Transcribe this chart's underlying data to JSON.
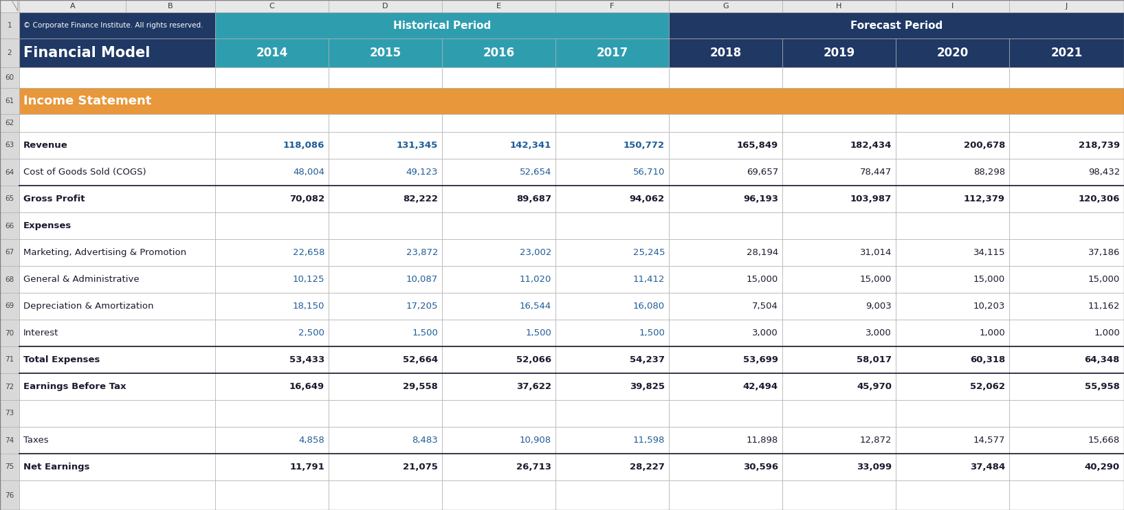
{
  "copyright": "© Corporate Finance Institute. All rights reserved.",
  "title": "Financial Model",
  "section_title": "Income Statement",
  "period_headers": {
    "historical": "Historical Period",
    "forecast": "Forecast Period"
  },
  "years": [
    "2014",
    "2015",
    "2016",
    "2017",
    "2018",
    "2019",
    "2020",
    "2021"
  ],
  "rows": [
    {
      "rnum": "1",
      "label": "",
      "bold": false,
      "is_header1": true,
      "values": [
        null,
        null,
        null,
        null,
        null,
        null,
        null,
        null
      ]
    },
    {
      "rnum": "2",
      "label": "",
      "bold": false,
      "is_header2": true,
      "values": [
        null,
        null,
        null,
        null,
        null,
        null,
        null,
        null
      ]
    },
    {
      "rnum": "60",
      "label": "",
      "bold": false,
      "is_blank": true,
      "values": [
        null,
        null,
        null,
        null,
        null,
        null,
        null,
        null
      ]
    },
    {
      "rnum": "61",
      "label": "Income Statement",
      "bold": true,
      "is_section": true,
      "values": [
        null,
        null,
        null,
        null,
        null,
        null,
        null,
        null
      ]
    },
    {
      "rnum": "62",
      "label": "",
      "bold": false,
      "is_blank": true,
      "values": [
        null,
        null,
        null,
        null,
        null,
        null,
        null,
        null
      ]
    },
    {
      "rnum": "63",
      "label": "Revenue",
      "bold": true,
      "hist_blue": true,
      "fore_blue": false,
      "values": [
        "118,086",
        "131,345",
        "142,341",
        "150,772",
        "165,849",
        "182,434",
        "200,678",
        "218,739"
      ]
    },
    {
      "rnum": "64",
      "label": "Cost of Goods Sold (COGS)",
      "bold": false,
      "hist_blue": true,
      "fore_blue": false,
      "values": [
        "48,004",
        "49,123",
        "52,654",
        "56,710",
        "69,657",
        "78,447",
        "88,298",
        "98,432"
      ]
    },
    {
      "rnum": "65",
      "label": "Gross Profit",
      "bold": true,
      "top_border": true,
      "hist_blue": false,
      "fore_blue": false,
      "values": [
        "70,082",
        "82,222",
        "89,687",
        "94,062",
        "96,193",
        "103,987",
        "112,379",
        "120,306"
      ]
    },
    {
      "rnum": "66",
      "label": "Expenses",
      "bold": true,
      "hist_blue": false,
      "fore_blue": false,
      "values": [
        null,
        null,
        null,
        null,
        null,
        null,
        null,
        null
      ]
    },
    {
      "rnum": "67",
      "label": "Marketing, Advertising & Promotion",
      "bold": false,
      "hist_blue": true,
      "fore_blue": false,
      "values": [
        "22,658",
        "23,872",
        "23,002",
        "25,245",
        "28,194",
        "31,014",
        "34,115",
        "37,186"
      ]
    },
    {
      "rnum": "68",
      "label": "General & Administrative",
      "bold": false,
      "hist_blue": true,
      "fore_blue": false,
      "values": [
        "10,125",
        "10,087",
        "11,020",
        "11,412",
        "15,000",
        "15,000",
        "15,000",
        "15,000"
      ]
    },
    {
      "rnum": "69",
      "label": "Depreciation & Amortization",
      "bold": false,
      "hist_blue": true,
      "fore_blue": false,
      "values": [
        "18,150",
        "17,205",
        "16,544",
        "16,080",
        "7,504",
        "9,003",
        "10,203",
        "11,162"
      ]
    },
    {
      "rnum": "70",
      "label": "Interest",
      "bold": false,
      "hist_blue": true,
      "fore_blue": false,
      "values": [
        "2,500",
        "1,500",
        "1,500",
        "1,500",
        "3,000",
        "3,000",
        "1,000",
        "1,000"
      ]
    },
    {
      "rnum": "71",
      "label": "Total Expenses",
      "bold": true,
      "top_border": true,
      "hist_blue": false,
      "fore_blue": false,
      "values": [
        "53,433",
        "52,664",
        "52,066",
        "54,237",
        "53,699",
        "58,017",
        "60,318",
        "64,348"
      ]
    },
    {
      "rnum": "72",
      "label": "Earnings Before Tax",
      "bold": true,
      "top_border": true,
      "hist_blue": false,
      "fore_blue": false,
      "values": [
        "16,649",
        "29,558",
        "37,622",
        "39,825",
        "42,494",
        "45,970",
        "52,062",
        "55,958"
      ]
    },
    {
      "rnum": "73",
      "label": "",
      "bold": false,
      "is_blank": true,
      "values": [
        null,
        null,
        null,
        null,
        null,
        null,
        null,
        null
      ]
    },
    {
      "rnum": "74",
      "label": "Taxes",
      "bold": false,
      "hist_blue": true,
      "fore_blue": false,
      "values": [
        "4,858",
        "8,483",
        "10,908",
        "11,598",
        "11,898",
        "12,872",
        "14,577",
        "15,668"
      ]
    },
    {
      "rnum": "75",
      "label": "Net Earnings",
      "bold": true,
      "top_border": true,
      "hist_blue": false,
      "fore_blue": false,
      "values": [
        "11,791",
        "21,075",
        "26,713",
        "28,227",
        "30,596",
        "33,099",
        "37,484",
        "40,290"
      ]
    },
    {
      "rnum": "76",
      "label": "",
      "bold": false,
      "is_blank": true,
      "values": [
        null,
        null,
        null,
        null,
        null,
        null,
        null,
        null
      ]
    }
  ],
  "colors": {
    "dark_navy": "#1F3864",
    "teal": "#2E9EAF",
    "orange": "#E8973A",
    "white": "#FFFFFF",
    "cell_gray": "#E8E8E8",
    "row_num_gray": "#D9D9D9",
    "grid_line": "#B0B0B0",
    "hist_blue": "#1F5C99",
    "text_dark": "#1A1A2E",
    "header_text": "#FFFFFF"
  }
}
